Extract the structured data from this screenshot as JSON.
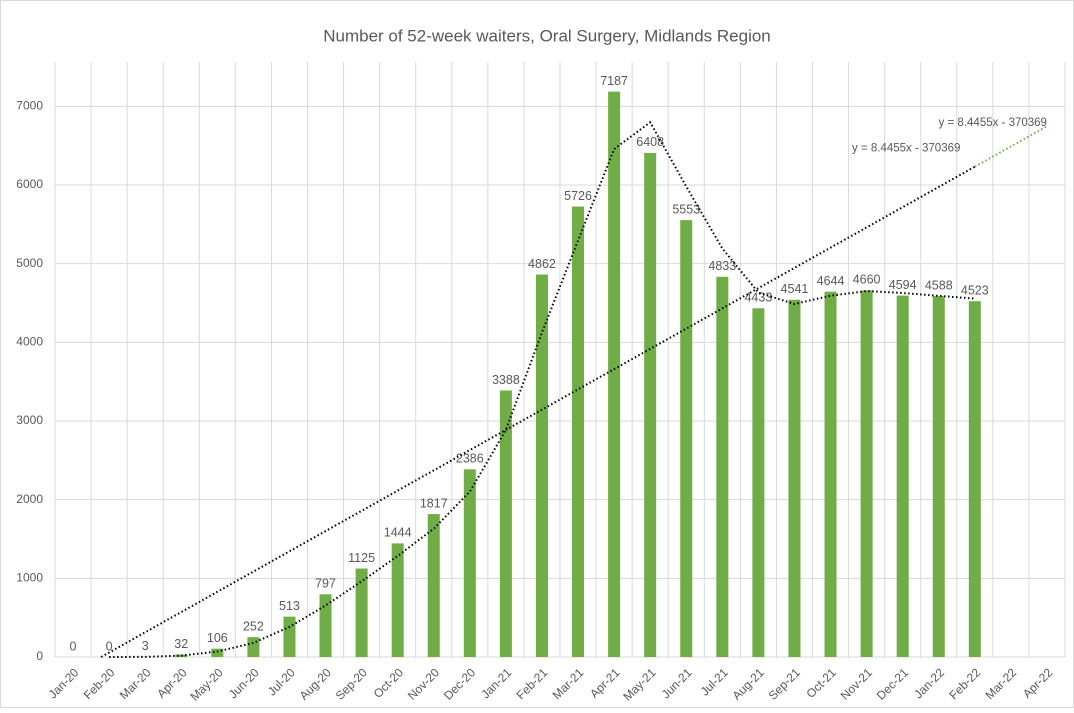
{
  "chart_data": {
    "type": "bar",
    "title": "Number of 52-week waiters, Oral Surgery, Midlands Region",
    "categories": [
      "Jan-20",
      "Feb-20",
      "Mar-20",
      "Apr-20",
      "May-20",
      "Jun-20",
      "Jul-20",
      "Aug-20",
      "Sep-20",
      "Oct-20",
      "Nov-20",
      "Dec-20",
      "Jan-21",
      "Feb-21",
      "Mar-21",
      "Apr-21",
      "May-21",
      "Jun-21",
      "Jul-21",
      "Aug-21",
      "Sep-21",
      "Oct-21",
      "Nov-21",
      "Dec-21",
      "Jan-22",
      "Feb-22",
      "Mar-22",
      "Apr-22"
    ],
    "values": [
      0,
      0,
      3,
      32,
      106,
      252,
      513,
      797,
      1125,
      1444,
      1817,
      2386,
      3388,
      4862,
      5726,
      7187,
      6408,
      5553,
      4833,
      4433,
      4541,
      4644,
      4660,
      4594,
      4588,
      4523,
      null,
      null
    ],
    "color": "#70ad47",
    "ylim": [
      0,
      7500
    ],
    "yticks": [
      0,
      1000,
      2000,
      3000,
      4000,
      5000,
      6000,
      7000
    ],
    "grid": true,
    "trendlines": [
      {
        "type": "moving_average",
        "period": 2,
        "color": "#000000"
      },
      {
        "type": "linear",
        "color": "#000000",
        "forecast_color": "#70ad47",
        "forward": 2,
        "labels": [
          "y = 8.4455x - 370369",
          "y = 8.4455x - 370369"
        ]
      }
    ]
  }
}
